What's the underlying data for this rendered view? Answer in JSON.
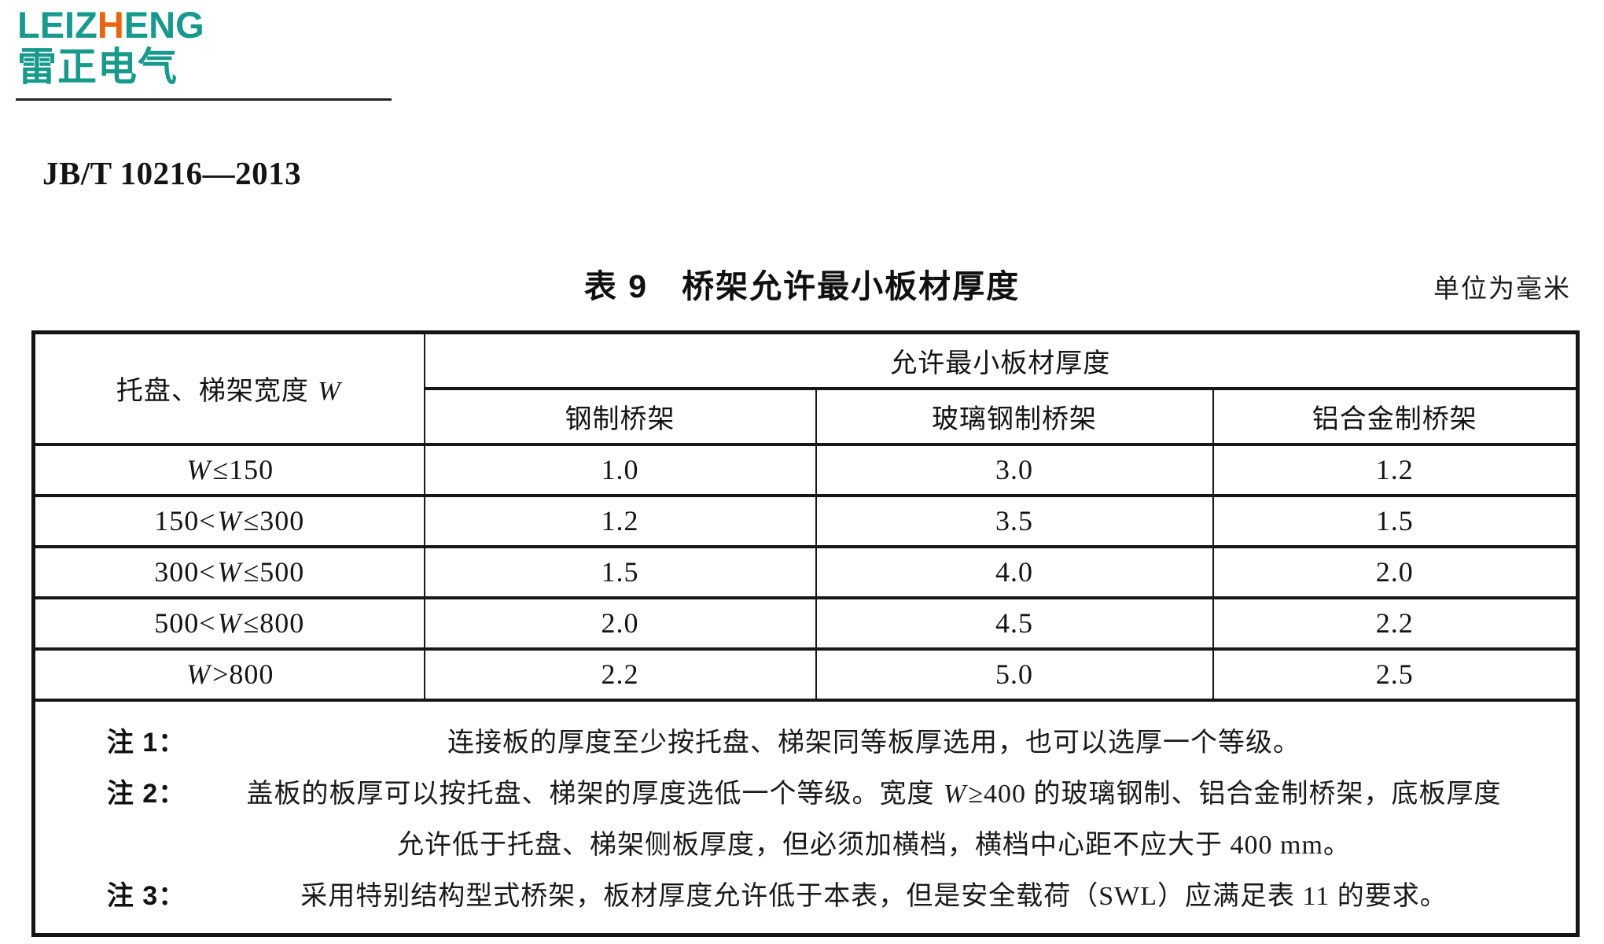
{
  "logo": {
    "wordmark": {
      "pre": "LEIZ",
      "accent": "H",
      "post": "ENG"
    },
    "cjk_name": "雷正电气",
    "teal": "#17998c",
    "accent_orange": "#e8650e"
  },
  "document": {
    "standard_code": "JB/T 10216—2013",
    "table_caption": "表 9　桥架允许最小板材厚度",
    "unit_label": "单位为毫米"
  },
  "table": {
    "row_header": "托盘、梯架宽度 W",
    "group_header": "允许最小板材厚度",
    "column_headers": [
      "钢制桥架",
      "玻璃钢制桥架",
      "铝合金制桥架"
    ],
    "rows": [
      {
        "range": "W≤150",
        "values": [
          "1.0",
          "3.0",
          "1.2"
        ]
      },
      {
        "range": "150<W≤300",
        "values": [
          "1.2",
          "3.5",
          "1.5"
        ]
      },
      {
        "range": "300<W≤500",
        "values": [
          "1.5",
          "4.0",
          "2.0"
        ]
      },
      {
        "range": "500<W≤800",
        "values": [
          "2.0",
          "4.5",
          "2.2"
        ]
      },
      {
        "range": "W>800",
        "values": [
          "2.2",
          "5.0",
          "2.5"
        ]
      }
    ],
    "notes": [
      {
        "label": "注 1：",
        "lines": [
          "连接板的厚度至少按托盘、梯架同等板厚选用，也可以选厚一个等级。"
        ]
      },
      {
        "label": "注 2：",
        "lines": [
          "盖板的板厚可以按托盘、梯架的厚度选低一个等级。宽度 W≥400 的玻璃钢制、铝合金制桥架，底板厚度",
          "允许低于托盘、梯架侧板厚度，但必须加横档，横档中心距不应大于 400 mm。"
        ]
      },
      {
        "label": "注 3：",
        "lines": [
          "采用特别结构型式桥架，板材厚度允许低于本表，但是安全载荷（SWL）应满足表 11 的要求。"
        ]
      }
    ]
  }
}
